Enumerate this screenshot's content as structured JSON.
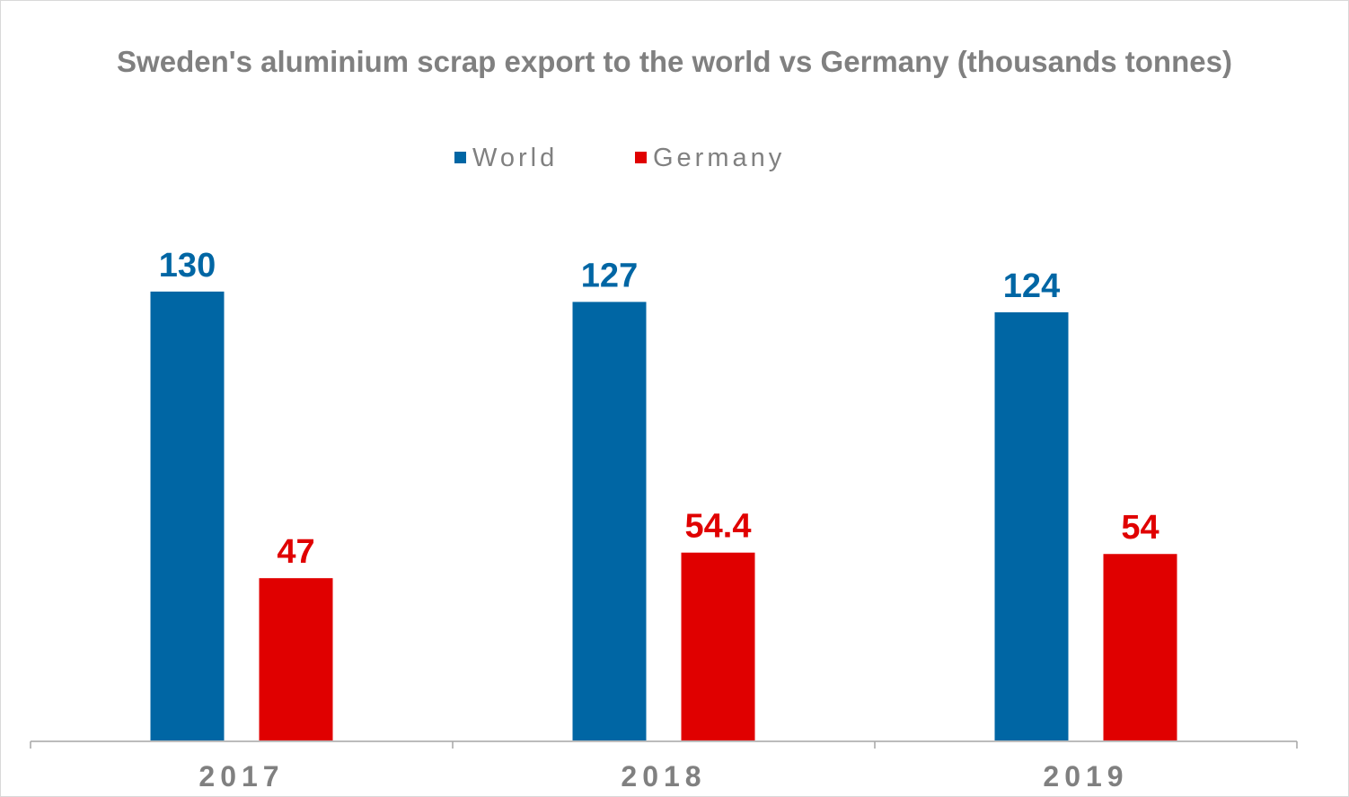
{
  "chart_data": {
    "type": "bar",
    "title": "Sweden's aluminium scrap export to the world vs Germany (thousands tonnes)",
    "categories": [
      "2017",
      "2018",
      "2019"
    ],
    "series": [
      {
        "name": "World",
        "color": "#0066a4",
        "values": [
          130,
          127,
          124
        ],
        "labels": [
          "130",
          "127",
          "124"
        ]
      },
      {
        "name": "Germany",
        "color": "#e00000",
        "values": [
          47,
          54.4,
          54
        ],
        "labels": [
          "47",
          "54.4",
          "54"
        ]
      }
    ],
    "ylim": [
      0,
      131
    ],
    "grid": false,
    "legend_position": "top-center",
    "xlabel": "",
    "ylabel": ""
  }
}
